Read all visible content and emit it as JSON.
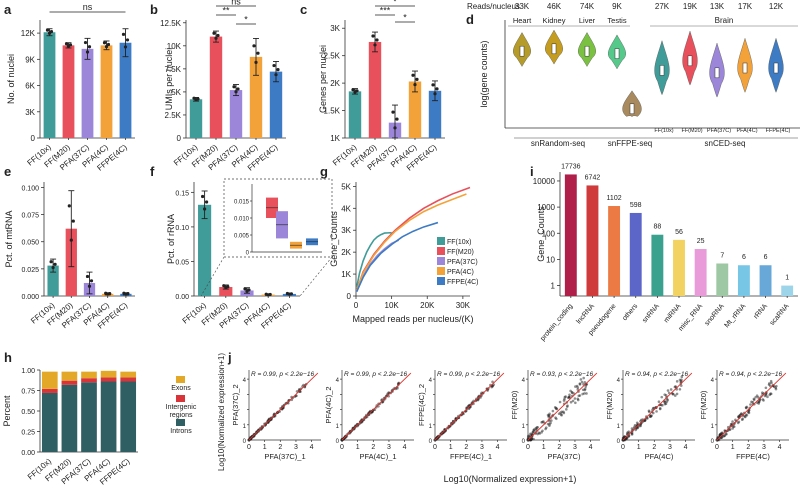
{
  "colors": {
    "FF10x": "#3f9c99",
    "FFM20": "#e8505b",
    "PFA37C": "#9b86d9",
    "PFA4C": "#f3a23a",
    "FFPE4C": "#3d7bc4",
    "heart": "#b59b2a",
    "kidney": "#c49c1f",
    "liver": "#7ac142",
    "testis": "#55c98a",
    "brownFFPE": "#a88a5e"
  },
  "conditions": [
    "FF(10x)",
    "FF(M20)",
    "PFA(37C)",
    "PFA(4C)",
    "FFPE(4C)"
  ],
  "chart_data": [
    {
      "id": "a",
      "panel_label": "a",
      "type": "bar",
      "title": "",
      "ylabel": "No. of nuclei",
      "ylim": [
        0,
        13500
      ],
      "yticks": [
        0,
        3000,
        6000,
        9000,
        12000
      ],
      "ytick_labels": [
        "0",
        "3K",
        "6K",
        "9K",
        "12K"
      ],
      "categories": [
        "FF(10x)",
        "FF(M20)",
        "PFA(37C)",
        "PFA(4C)",
        "FFPE(4C)"
      ],
      "values": [
        12100,
        10600,
        10200,
        10600,
        10900
      ],
      "errors": [
        400,
        300,
        1200,
        500,
        1600
      ],
      "annotations": [
        {
          "text": "ns",
          "from": "FF(10x)",
          "to": "FFPE(4C)"
        }
      ]
    },
    {
      "id": "b",
      "panel_label": "b",
      "type": "bar",
      "ylabel": "UMIs per nuclei",
      "ylim": [
        0,
        12800
      ],
      "yticks": [
        0,
        2500,
        5000,
        7500,
        10000,
        12500
      ],
      "ytick_labels": [
        "0",
        "2.5K",
        "5K",
        "7.5K",
        "10K",
        "12.5K"
      ],
      "categories": [
        "FF(10x)",
        "FF(M20)",
        "PFA(37C)",
        "PFA(4C)",
        "FFPE(4C)"
      ],
      "values": [
        4200,
        11000,
        5200,
        8800,
        7200
      ],
      "errors": [
        200,
        600,
        600,
        2000,
        1100
      ],
      "annotations": [
        {
          "text": "**",
          "from": "FF(M20)",
          "to": "PFA(37C)"
        },
        {
          "text": "*",
          "from": "PFA(37C)",
          "to": "PFA(4C)"
        },
        {
          "text": "ns",
          "from": "FF(M20)",
          "to": "PFA(4C)"
        }
      ]
    },
    {
      "id": "c",
      "panel_label": "c",
      "type": "bar",
      "ylabel": "Genes per nuclei",
      "ylim": [
        1000,
        3150
      ],
      "yticks": [
        1000,
        1500,
        2000,
        2500,
        3000
      ],
      "ytick_labels": [
        "1K",
        "1.5K",
        "2K",
        "2.5K",
        "3K"
      ],
      "categories": [
        "FF(10x)",
        "FF(M20)",
        "PFA(37C)",
        "PFA(4C)",
        "FFPE(4C)"
      ],
      "values": [
        1850,
        2750,
        1280,
        2030,
        1860
      ],
      "errors": [
        50,
        180,
        320,
        190,
        180
      ],
      "annotations": [
        {
          "text": "***",
          "from": "FF(M20)",
          "to": "PFA(37C)"
        },
        {
          "text": "*",
          "from": "PFA(37C)",
          "to": "PFA(4C)"
        },
        {
          "text": "*",
          "from": "FF(M20)",
          "to": "PFA(4C)"
        }
      ]
    },
    {
      "id": "d",
      "panel_label": "d",
      "type": "violin",
      "ylabel": "log(gene counts)",
      "header_label": "Reads/nucleus",
      "groups": [
        {
          "label": "Heart",
          "reads": "33K",
          "median": 8.2
        },
        {
          "label": "Kidney",
          "reads": "46K",
          "median": 8.3
        },
        {
          "label": "Liver",
          "reads": "74K",
          "median": 8.2
        },
        {
          "label": "Testis",
          "reads": "9K",
          "median": 8.1
        },
        {
          "label": "",
          "reads": "",
          "median": 5.8
        },
        {
          "label": "FF(10x)",
          "reads": "27K",
          "median": 7.4
        },
        {
          "label": "FF(M20)",
          "reads": "19K",
          "median": 7.8
        },
        {
          "label": "PFA(37C)",
          "reads": "13K",
          "median": 7.3
        },
        {
          "label": "PFA(4C)",
          "reads": "17K",
          "median": 7.5
        },
        {
          "label": "FFPE(4C)",
          "reads": "12K",
          "median": 7.5
        }
      ],
      "brain_label": "Brain",
      "methods": [
        "snRandom-seq",
        "snFFPE-seq",
        "snCED-seq"
      ]
    },
    {
      "id": "e",
      "panel_label": "e",
      "type": "bar",
      "ylabel": "Pct. of mtRNA",
      "ylim": [
        0,
        0.105
      ],
      "yticks": [
        0,
        0.025,
        0.05,
        0.075,
        0.1
      ],
      "ytick_labels": [
        "0.000",
        "0.025",
        "0.050",
        "0.075",
        "0.100"
      ],
      "categories": [
        "FF(10x)",
        "FF(M20)",
        "PFA(37C)",
        "PFA(4C)",
        "FFPE(4C)"
      ],
      "values": [
        0.028,
        0.062,
        0.012,
        0.002,
        0.002
      ],
      "errors": [
        0.006,
        0.035,
        0.01,
        0.001,
        0.001
      ]
    },
    {
      "id": "f",
      "panel_label": "f",
      "type": "bar",
      "ylabel": "Pct. of rRNA",
      "ylim": [
        0,
        0.165
      ],
      "yticks": [
        0,
        0.05,
        0.1,
        0.15
      ],
      "ytick_labels": [
        "0.00",
        "0.05",
        "0.10",
        "0.15"
      ],
      "categories": [
        "FF(10x)",
        "FF(M20)",
        "PFA(37C)",
        "PFA(4C)",
        "FFPE(4C)"
      ],
      "values": [
        0.132,
        0.013,
        0.008,
        0.002,
        0.003
      ],
      "errors": [
        0.02,
        0.003,
        0.004,
        0.001,
        0.001
      ],
      "inset": {
        "ylim": [
          0,
          0.02
        ],
        "yticks": [
          0,
          0.005,
          0.01,
          0.015
        ],
        "ytick_labels": [
          "0",
          "0.005",
          "0.010",
          "0.015"
        ]
      }
    },
    {
      "id": "g",
      "panel_label": "g",
      "type": "line",
      "xlabel": "Mapped reads per nucleus/(K)",
      "ylabel": "Gene_Counts",
      "xlim": [
        0,
        32
      ],
      "ylim": [
        0,
        5200
      ],
      "xticks": [
        0,
        10,
        20,
        30
      ],
      "xtick_labels": [
        "0",
        "10K",
        "20K",
        "30K"
      ],
      "yticks": [
        0,
        1000,
        2000,
        3000,
        4000,
        5000
      ],
      "ytick_labels": [
        "0",
        "1K",
        "2K",
        "3K",
        "4K",
        "5K"
      ],
      "series": [
        {
          "name": "FF(10x)",
          "x": [
            0.2,
            1,
            2,
            3,
            4,
            5,
            6,
            7,
            8,
            9,
            10
          ],
          "y": [
            400,
            1050,
            1600,
            2000,
            2300,
            2550,
            2700,
            2800,
            2870,
            2880,
            2890
          ]
        },
        {
          "name": "FF(M20)",
          "x": [
            0.2,
            2,
            5,
            8,
            11,
            15,
            19,
            23,
            27,
            32
          ],
          "y": [
            250,
            1100,
            1900,
            2500,
            3000,
            3550,
            4000,
            4350,
            4650,
            4950
          ]
        },
        {
          "name": "PFA(37C)",
          "x": [
            0.2,
            2,
            4,
            6,
            8,
            10,
            12
          ],
          "y": [
            200,
            900,
            1450,
            1850,
            2150,
            2400,
            2550
          ]
        },
        {
          "name": "PFA(4C)",
          "x": [
            0.2,
            2,
            5,
            8,
            11,
            15,
            19,
            23,
            27,
            31
          ],
          "y": [
            250,
            1050,
            1850,
            2450,
            2950,
            3450,
            3850,
            4150,
            4400,
            4650
          ]
        },
        {
          "name": "FFPE(4C)",
          "x": [
            0.2,
            2,
            4,
            7,
            10,
            13,
            16,
            19,
            23
          ],
          "y": [
            200,
            850,
            1400,
            1950,
            2350,
            2700,
            2950,
            3150,
            3350
          ]
        }
      ]
    },
    {
      "id": "h",
      "panel_label": "h",
      "type": "stacked_bar",
      "ylabel": "Percent",
      "ylim": [
        0,
        1
      ],
      "yticks": [
        0,
        0.25,
        0.5,
        0.75,
        1
      ],
      "ytick_labels": [
        "0.00",
        "0.25",
        "0.50",
        "0.75",
        "1.00"
      ],
      "categories": [
        "FF(10x)",
        "FF(M20)",
        "PFA(37C)",
        "PFA(4C)",
        "FFPE(4C)"
      ],
      "series": [
        {
          "name": "Introns",
          "color": "#2f5e63",
          "values": [
            0.72,
            0.82,
            0.85,
            0.86,
            0.86
          ]
        },
        {
          "name": "Intergenic regions",
          "color": "#d9343a",
          "values": [
            0.05,
            0.05,
            0.05,
            0.05,
            0.05
          ]
        },
        {
          "name": "Exons",
          "color": "#e3a827",
          "values": [
            0.21,
            0.11,
            0.08,
            0.08,
            0.07
          ]
        }
      ],
      "legend": [
        "Exons",
        "Intergenic regions",
        "Introns"
      ]
    },
    {
      "id": "i",
      "panel_label": "i",
      "type": "bar",
      "log": true,
      "ylabel": "Gene_Counts",
      "ylim": [
        0.4,
        22000
      ],
      "yticks": [
        1,
        10,
        100,
        1000,
        10000
      ],
      "ytick_labels": [
        "1",
        "10",
        "100",
        "1000",
        "10000"
      ],
      "categories": [
        "protein_coding",
        "lncRNA",
        "pseudogene",
        "others",
        "snRNA",
        "miRNA",
        "misc_RNA",
        "snoRNA",
        "Mt_rRNA",
        "rRNA",
        "scaRNA"
      ],
      "values": [
        17736,
        6742,
        1102,
        598,
        88,
        56,
        25,
        7,
        6,
        6,
        1
      ],
      "value_labels": [
        "17736",
        "6742",
        "1102",
        "598",
        "88",
        "56",
        "25",
        "7",
        "6",
        "6",
        "1"
      ],
      "colors": [
        "#b01e4a",
        "#cf3b3b",
        "#ec7a45",
        "#5b66c8",
        "#3aa18e",
        "#f2d260",
        "#e89bd8",
        "#9ec8a3",
        "#77c6e6",
        "#68a8d8",
        "#9ed4ea"
      ]
    },
    {
      "id": "j",
      "panel_label": "j",
      "type": "scatter",
      "ylabel": "Log10(Normalized expression+1)",
      "xlabel": "Log10(Normalized expression+1)",
      "xlim": [
        0,
        4.6
      ],
      "ylim": [
        0,
        4.6
      ],
      "xticks": [
        0,
        1,
        2,
        3,
        4
      ],
      "panels": [
        {
          "xlabel": "PFA(37C)_1",
          "ylabel": "PFA(37C)_2",
          "r": "R = 0.99, p < 2.2e−16",
          "spread": 0.06
        },
        {
          "xlabel": "PFA(4C)_1",
          "ylabel": "PFA(4C)_2",
          "r": "R = 0.99, p < 2.2e−16",
          "spread": 0.06
        },
        {
          "xlabel": "FFPE(4C)_1",
          "ylabel": "FFPE(4C)_2",
          "r": "R = 0.99, p < 2.2e−16",
          "spread": 0.06
        },
        {
          "xlabel": "PFA(37C)",
          "ylabel": "FF(M20)",
          "r": "R = 0.93, p < 2.2e−16",
          "spread": 0.28
        },
        {
          "xlabel": "PFA(4C)",
          "ylabel": "FF(M20)",
          "r": "R = 0.94, p < 2.2e−16",
          "spread": 0.18
        },
        {
          "xlabel": "FFPE(4C)",
          "ylabel": "FF(M20)",
          "r": "R = 0.94, p < 2.2e−16",
          "spread": 0.18
        }
      ]
    }
  ]
}
